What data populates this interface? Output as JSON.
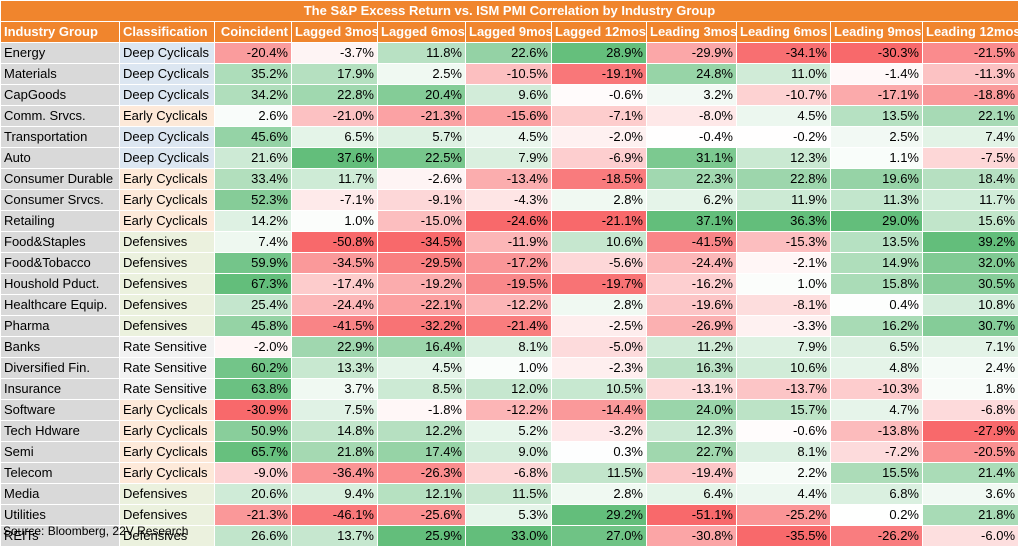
{
  "title": "The S&P Excess Return vs. ISM PMI Correlation by Industry Group",
  "source": "Source: Bloomberg, 22V Research",
  "colors": {
    "header": "#f0852d",
    "positive": "#63be7b",
    "negative": "#f8696b",
    "neutral": "#ffffff"
  },
  "chart_data": {
    "type": "table",
    "title": "The S&P Excess Return vs. ISM PMI Correlation by Industry Group",
    "columns": [
      "Industry Group",
      "Classification",
      "Coincident",
      "Lagged 3mos",
      "Lagged 6mos",
      "Lagged 9mos",
      "Lagged 12mos",
      "Leading 3mos",
      "Leading 6mos",
      "Leading 9mos",
      "Leading 12mos"
    ],
    "rows": [
      {
        "group": "Energy",
        "classification": "Deep Cyclicals",
        "values": [
          -20.4,
          -3.7,
          11.8,
          22.6,
          28.9,
          -29.9,
          -34.1,
          -30.3,
          -21.5
        ]
      },
      {
        "group": "Materials",
        "classification": "Deep Cyclicals",
        "values": [
          35.2,
          17.9,
          2.5,
          -10.5,
          -19.1,
          24.8,
          11.0,
          -1.4,
          -11.3
        ]
      },
      {
        "group": "CapGoods",
        "classification": "Deep Cyclicals",
        "values": [
          34.2,
          22.8,
          20.4,
          9.6,
          -0.6,
          3.2,
          -10.7,
          -17.1,
          -18.8
        ]
      },
      {
        "group": "Comm. Srvcs.",
        "classification": "Early Cyclicals",
        "values": [
          2.6,
          -21.0,
          -21.3,
          -15.6,
          -7.1,
          -8.0,
          4.5,
          13.5,
          22.1
        ]
      },
      {
        "group": "Transportation",
        "classification": "Deep Cyclicals",
        "values": [
          45.6,
          6.5,
          5.7,
          4.5,
          -2.0,
          -0.4,
          -0.2,
          2.5,
          7.4
        ]
      },
      {
        "group": "Auto",
        "classification": "Deep Cyclicals",
        "values": [
          21.6,
          37.6,
          22.5,
          7.9,
          -6.9,
          31.1,
          12.3,
          1.1,
          -7.5
        ]
      },
      {
        "group": "Consumer Durable",
        "classification": "Early Cyclicals",
        "values": [
          33.4,
          11.7,
          -2.6,
          -13.4,
          -18.5,
          22.3,
          22.8,
          19.6,
          18.4
        ]
      },
      {
        "group": "Consumer Srvcs.",
        "classification": "Early Cyclicals",
        "values": [
          52.3,
          -7.1,
          -9.1,
          -4.3,
          2.8,
          6.2,
          11.9,
          11.3,
          11.7
        ]
      },
      {
        "group": "Retailing",
        "classification": "Early Cyclicals",
        "values": [
          14.2,
          1.0,
          -15.0,
          -24.6,
          -21.1,
          37.1,
          36.3,
          29.0,
          15.6
        ]
      },
      {
        "group": "Food&Staples",
        "classification": "Defensives",
        "values": [
          7.4,
          -50.8,
          -34.5,
          -11.9,
          10.6,
          -41.5,
          -15.3,
          13.5,
          39.2
        ]
      },
      {
        "group": "Food&Tobacco",
        "classification": "Defensives",
        "values": [
          59.9,
          -34.5,
          -29.5,
          -17.2,
          -5.6,
          -24.4,
          -2.1,
          14.9,
          32.0
        ]
      },
      {
        "group": "Houshold Pduct.",
        "classification": "Defensives",
        "values": [
          67.3,
          -17.4,
          -19.2,
          -19.5,
          -19.7,
          -16.2,
          1.0,
          15.8,
          30.5
        ]
      },
      {
        "group": "Healthcare Equip.",
        "classification": "Defensives",
        "values": [
          25.4,
          -24.4,
          -22.1,
          -12.2,
          2.8,
          -19.6,
          -8.1,
          0.4,
          10.8
        ]
      },
      {
        "group": "Pharma",
        "classification": "Defensives",
        "values": [
          45.8,
          -41.5,
          -32.2,
          -21.4,
          -2.5,
          -26.9,
          -3.3,
          16.2,
          30.7
        ]
      },
      {
        "group": "Banks",
        "classification": "Rate Sensitive",
        "values": [
          -2.0,
          22.9,
          16.4,
          8.1,
          -5.0,
          11.2,
          7.9,
          6.5,
          7.1
        ]
      },
      {
        "group": "Diversified Fin.",
        "classification": "Rate Sensitive",
        "values": [
          60.2,
          13.3,
          4.5,
          1.0,
          -2.3,
          16.3,
          10.6,
          4.8,
          2.4
        ]
      },
      {
        "group": "Insurance",
        "classification": "Rate Sensitive",
        "values": [
          63.8,
          3.7,
          8.5,
          12.0,
          10.5,
          -13.1,
          -13.7,
          -10.3,
          1.8
        ]
      },
      {
        "group": "Software",
        "classification": "Early Cyclicals",
        "values": [
          -30.9,
          7.5,
          -1.8,
          -12.2,
          -14.4,
          24.0,
          15.7,
          4.7,
          -6.8
        ]
      },
      {
        "group": "Tech Hdware",
        "classification": "Early Cyclicals",
        "values": [
          50.9,
          14.8,
          12.2,
          5.2,
          -3.2,
          12.3,
          -0.6,
          -13.8,
          -27.9
        ]
      },
      {
        "group": "Semi",
        "classification": "Early Cyclicals",
        "values": [
          65.7,
          21.8,
          17.4,
          9.0,
          0.3,
          22.7,
          8.1,
          -7.2,
          -20.5
        ]
      },
      {
        "group": "Telecom",
        "classification": "Early Cyclicals",
        "values": [
          -9.0,
          -36.4,
          -26.3,
          -6.8,
          11.5,
          -19.4,
          2.2,
          15.5,
          21.4
        ]
      },
      {
        "group": "Media",
        "classification": "Defensives",
        "values": [
          20.6,
          9.4,
          12.1,
          11.5,
          2.8,
          6.4,
          4.4,
          6.8,
          3.6
        ]
      },
      {
        "group": "Utilities",
        "classification": "Defensives",
        "values": [
          -21.3,
          -46.1,
          -25.6,
          5.3,
          29.2,
          -51.1,
          -25.2,
          0.2,
          21.8
        ]
      },
      {
        "group": "REITs",
        "classification": "Defensives",
        "values": [
          26.6,
          13.7,
          25.9,
          33.0,
          27.0,
          -30.8,
          -35.5,
          -26.2,
          -6.0
        ]
      }
    ]
  }
}
